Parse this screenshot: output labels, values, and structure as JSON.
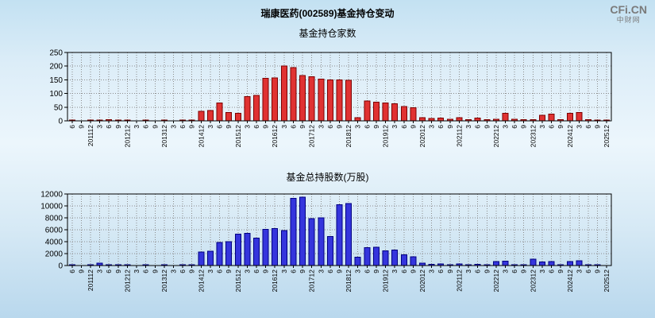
{
  "header": {
    "title": "瑞康医药(002589)基金持仓变动",
    "logo_main": "CFi.CN",
    "logo_sub": "中财网"
  },
  "chart_data": [
    {
      "type": "bar",
      "title": "基金持仓家数",
      "xlabel": "",
      "ylabel": "",
      "ylim": [
        0,
        250
      ],
      "yticks": [
        0,
        50,
        100,
        150,
        200,
        250
      ],
      "grid": true,
      "legend": false,
      "bar_color": "#e03232",
      "bar_border": "#7d0000",
      "categories": [
        "6",
        "9",
        "201112",
        "3",
        "6",
        "9",
        "201212",
        "3",
        "6",
        "9",
        "201312",
        "3",
        "6",
        "9",
        "201412",
        "3",
        "6",
        "9",
        "201512",
        "3",
        "6",
        "9",
        "201612",
        "3",
        "6",
        "9",
        "201712",
        "3",
        "6",
        "9",
        "201812",
        "3",
        "6",
        "9",
        "201912",
        "3",
        "6",
        "9",
        "202012",
        "3",
        "6",
        "9",
        "202112",
        "3",
        "6",
        "9",
        "202212",
        "3",
        "6",
        "9",
        "202312",
        "3",
        "6",
        "9",
        "202412",
        "3",
        "6",
        "9",
        "202512"
      ],
      "values": [
        2,
        0,
        1,
        1,
        5,
        2,
        1,
        0,
        1,
        0,
        1,
        0,
        1,
        2,
        35,
        38,
        65,
        30,
        28,
        88,
        93,
        155,
        157,
        200,
        195,
        165,
        162,
        152,
        150,
        149,
        148,
        12,
        72,
        68,
        65,
        62,
        52,
        48,
        12,
        8,
        10,
        6,
        12,
        5,
        10,
        4,
        6,
        28,
        6,
        4,
        5,
        20,
        24,
        5,
        28,
        30,
        4,
        3,
        2
      ]
    },
    {
      "type": "bar",
      "title": "基金总持股数(万股)",
      "xlabel": "",
      "ylabel": "",
      "ylim": [
        0,
        12000
      ],
      "yticks": [
        0,
        2000,
        4000,
        6000,
        8000,
        10000,
        12000
      ],
      "grid": true,
      "legend": false,
      "bar_color": "#3535dd",
      "bar_border": "#000080",
      "categories": [
        "6",
        "9",
        "201112",
        "3",
        "6",
        "9",
        "201212",
        "3",
        "6",
        "9",
        "201312",
        "3",
        "6",
        "9",
        "201412",
        "3",
        "6",
        "9",
        "201512",
        "3",
        "6",
        "9",
        "201612",
        "3",
        "6",
        "9",
        "201712",
        "3",
        "6",
        "9",
        "201812",
        "3",
        "6",
        "9",
        "201912",
        "3",
        "6",
        "9",
        "202012",
        "3",
        "6",
        "9",
        "202112",
        "3",
        "6",
        "9",
        "202212",
        "3",
        "6",
        "9",
        "202312",
        "3",
        "6",
        "9",
        "202412",
        "3",
        "6",
        "9",
        "202512"
      ],
      "values": [
        80,
        0,
        50,
        400,
        150,
        60,
        30,
        0,
        20,
        0,
        10,
        0,
        20,
        50,
        2300,
        2400,
        3900,
        4000,
        5300,
        5400,
        4600,
        6100,
        6200,
        5900,
        11300,
        11500,
        7900,
        8000,
        4900,
        10200,
        10400,
        1400,
        3000,
        3100,
        2500,
        2600,
        1800,
        1500,
        400,
        200,
        250,
        150,
        300,
        100,
        200,
        80,
        700,
        750,
        150,
        100,
        1100,
        600,
        650,
        150,
        700,
        800,
        100,
        50,
        0
      ]
    }
  ]
}
